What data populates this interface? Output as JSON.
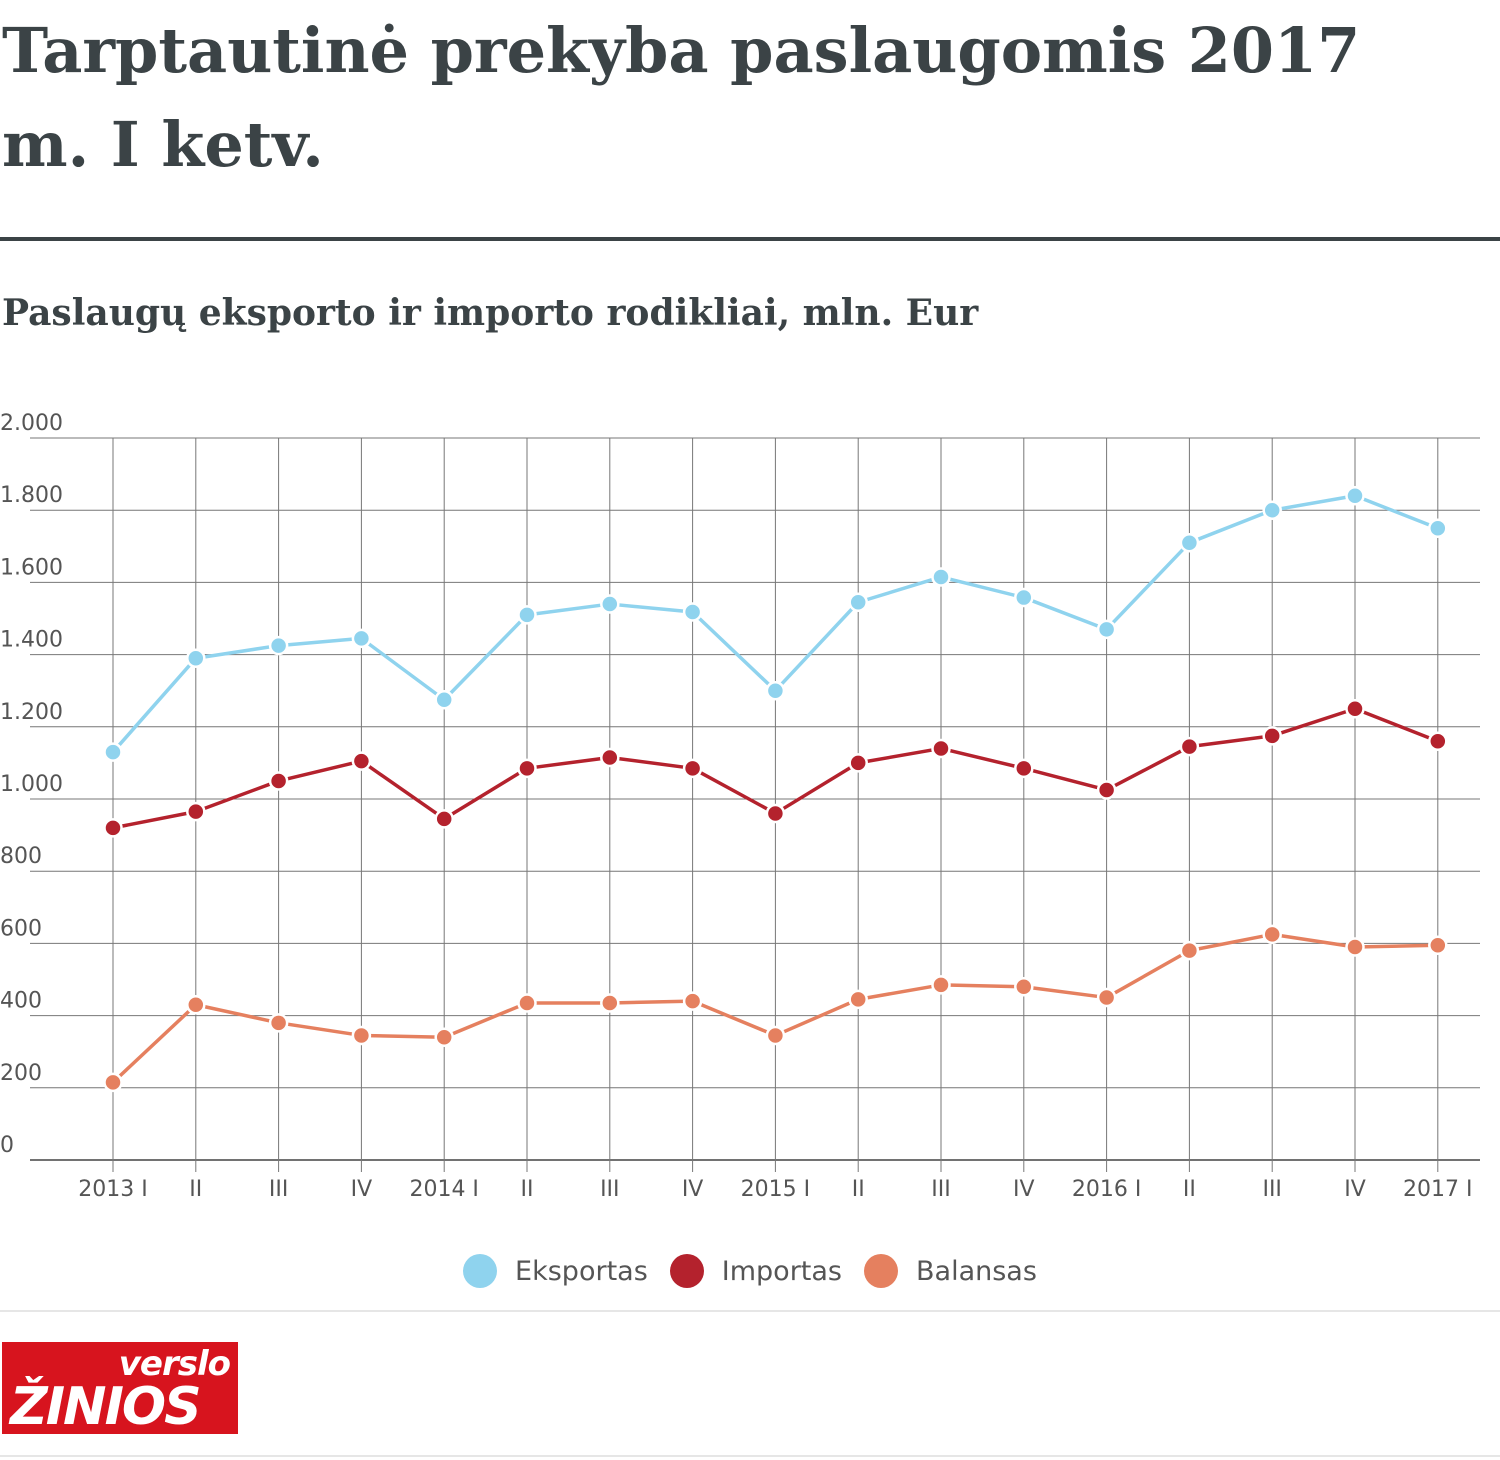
{
  "title": "Tarptautinė prekyba paslaugomis 2017 m. I ketv.",
  "subtitle": "Paslaugų eksporto ir importo rodikliai, mln. Eur",
  "logo": {
    "top": "verslo",
    "bottom": "ŽINIOS"
  },
  "legend": [
    {
      "label": "Eksportas",
      "color": "#8fd3ee"
    },
    {
      "label": "Importas",
      "color": "#b4222d"
    },
    {
      "label": "Balansas",
      "color": "#e5805f"
    }
  ],
  "chart_data": {
    "type": "line",
    "title": "Paslaugų eksporto ir importo rodikliai, mln. Eur",
    "xlabel": "",
    "ylabel": "",
    "ylim": [
      0,
      2000
    ],
    "yticks": [
      0,
      200,
      400,
      600,
      800,
      1000,
      1200,
      1400,
      1600,
      1800,
      2000
    ],
    "ytick_labels": [
      "0",
      "200",
      "400",
      "600",
      "800",
      "1.000",
      "1.200",
      "1.400",
      "1.600",
      "1.800",
      "2.000"
    ],
    "categories": [
      "2013 I",
      "II",
      "III",
      "IV",
      "2014 I",
      "II",
      "III",
      "IV",
      "2015 I",
      "II",
      "III",
      "IV",
      "2016 I",
      "II",
      "III",
      "IV",
      "2017 I"
    ],
    "grid": true,
    "legend_position": "bottom",
    "series": [
      {
        "name": "Eksportas",
        "color": "#8fd3ee",
        "values": [
          1130,
          1390,
          1425,
          1445,
          1275,
          1510,
          1540,
          1518,
          1300,
          1545,
          1615,
          1558,
          1470,
          1710,
          1800,
          1840,
          1750
        ]
      },
      {
        "name": "Importas",
        "color": "#b4222d",
        "values": [
          920,
          965,
          1050,
          1105,
          945,
          1085,
          1115,
          1085,
          960,
          1100,
          1140,
          1085,
          1025,
          1145,
          1175,
          1250,
          1160
        ]
      },
      {
        "name": "Balansas",
        "color": "#e5805f",
        "values": [
          215,
          430,
          380,
          345,
          340,
          435,
          435,
          440,
          345,
          445,
          485,
          480,
          450,
          580,
          625,
          590,
          595
        ]
      }
    ]
  }
}
